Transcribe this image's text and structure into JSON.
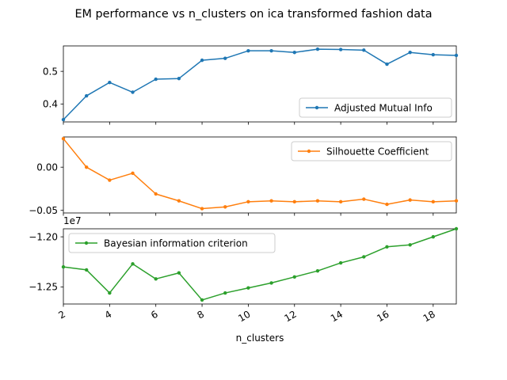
{
  "figure": {
    "title": "EM performance vs n_clusters on ica transformed fashion data",
    "xlabel": "n_clusters"
  },
  "chart_data": [
    {
      "type": "line",
      "x": [
        2,
        3,
        4,
        5,
        6,
        7,
        8,
        9,
        10,
        11,
        12,
        13,
        14,
        15,
        16,
        17,
        18,
        19
      ],
      "series": [
        {
          "name": "Adjusted Mutual Info",
          "color": "#1f77b4",
          "marker": "circle",
          "values": [
            0.352,
            0.425,
            0.466,
            0.436,
            0.476,
            0.478,
            0.534,
            0.54,
            0.563,
            0.563,
            0.558,
            0.568,
            0.567,
            0.565,
            0.522,
            0.558,
            0.551,
            0.549
          ]
        }
      ],
      "xlim": [
        2,
        19
      ],
      "ylim": [
        0.345,
        0.578
      ],
      "yticks": [
        0.4,
        0.5
      ],
      "ytick_labels": [
        "0.4",
        "0.5"
      ],
      "xticks": [
        2,
        4,
        6,
        8,
        10,
        12,
        14,
        16,
        18
      ],
      "legend": "lower-right"
    },
    {
      "type": "line",
      "x": [
        2,
        3,
        4,
        5,
        6,
        7,
        8,
        9,
        10,
        11,
        12,
        13,
        14,
        15,
        16,
        17,
        18,
        19
      ],
      "series": [
        {
          "name": "Silhouette Coefficient",
          "color": "#ff7f0e",
          "marker": "circle",
          "values": [
            0.033,
            0.0,
            -0.015,
            -0.007,
            -0.031,
            -0.039,
            -0.048,
            -0.046,
            -0.04,
            -0.039,
            -0.04,
            -0.039,
            -0.04,
            -0.037,
            -0.043,
            -0.038,
            -0.04,
            -0.039
          ]
        }
      ],
      "xlim": [
        2,
        19
      ],
      "ylim": [
        -0.053,
        0.035
      ],
      "yticks": [
        0.0,
        -0.05
      ],
      "ytick_labels": [
        "0.00",
        "−0.05"
      ],
      "xticks": [
        2,
        4,
        6,
        8,
        10,
        12,
        14,
        16,
        18
      ],
      "legend": "upper-right"
    },
    {
      "type": "line",
      "x": [
        2,
        3,
        4,
        5,
        6,
        7,
        8,
        9,
        10,
        11,
        12,
        13,
        14,
        15,
        16,
        17,
        18,
        19
      ],
      "series": [
        {
          "name": "Bayesian information criterion",
          "color": "#2ca02c",
          "marker": "circle",
          "values": [
            -12.3,
            -12.33,
            -12.56,
            -12.27,
            -12.42,
            -12.36,
            -12.63,
            -12.56,
            -12.51,
            -12.46,
            -12.4,
            -12.34,
            -12.26,
            -12.2,
            -12.1,
            -12.08,
            -12.0,
            -11.92
          ]
        }
      ],
      "value_scale_label": "1e7",
      "xlim": [
        2,
        19
      ],
      "ylim": [
        -12.67,
        -11.92
      ],
      "yticks": [
        -12.0,
        -12.5
      ],
      "ytick_labels": [
        "−1.20",
        "−1.25"
      ],
      "xticks": [
        2,
        4,
        6,
        8,
        10,
        12,
        14,
        16,
        18
      ],
      "xtick_labels": [
        "2",
        "4",
        "6",
        "8",
        "10",
        "12",
        "14",
        "16",
        "18"
      ],
      "legend": "upper-left"
    }
  ]
}
